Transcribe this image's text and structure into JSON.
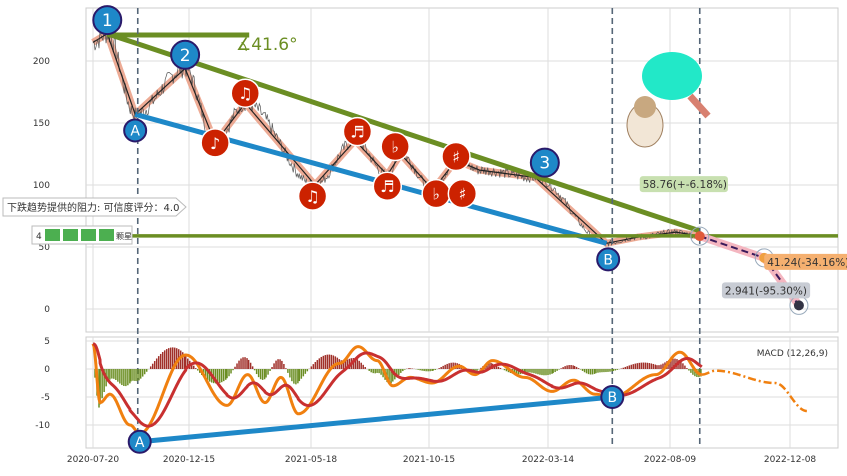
{
  "chart_data": [
    {
      "type": "line",
      "panel": "price",
      "yticks": [
        0,
        50,
        100,
        150,
        200
      ],
      "ylim": [
        -18,
        243
      ],
      "grid": true,
      "price_waypoints": [
        [
          "2020-07-20",
          215
        ],
        [
          "2020-08-11",
          222
        ],
        [
          "2020-09-23",
          157
        ],
        [
          "2020-12-09",
          194
        ],
        [
          "2021-01-17",
          134
        ],
        [
          "2021-02-24",
          166
        ],
        [
          "2021-05-23",
          100
        ],
        [
          "2021-07-13",
          136
        ],
        [
          "2021-08-23",
          108
        ],
        [
          "2021-09-09",
          125
        ],
        [
          "2021-10-20",
          96
        ],
        [
          "2021-11-18",
          120
        ],
        [
          "2021-12-18",
          112
        ],
        [
          "2022-02-26",
          106
        ],
        [
          "2022-05-24",
          53
        ],
        [
          "2022-07-01",
          58
        ],
        [
          "2022-08-15",
          62
        ],
        [
          "2022-09-08",
          58.76
        ]
      ],
      "forecast": [
        [
          "2022-09-08",
          58.76,
          "58.76(+-6.18%)"
        ],
        [
          "2022-11-12",
          41.24,
          "41.24(-34.16%)"
        ],
        [
          "2022-12-17",
          2.941,
          "2.941(-95.30%)"
        ]
      ],
      "resistance_line": {
        "from": [
          "2020-08-11",
          222
        ],
        "to": [
          "2022-09-08",
          63
        ]
      },
      "support_line": {
        "from": [
          "2020-09-23",
          157
        ],
        "to": [
          "2022-05-24",
          53
        ]
      },
      "horizontal_level": 59,
      "top_segment": {
        "from": "2020-08-11",
        "to": "2021-03-01",
        "value": 221
      },
      "angle_label": "∡41.6°",
      "resistance_label": "下跌趋势提供的阻力: 可信度评分：4.0",
      "rating": {
        "score": "4",
        "icon_count": 4,
        "suffix": "颗星"
      },
      "wave_labels": [
        {
          "t": "1",
          "d": "2020-08-11",
          "v": 233
        },
        {
          "t": "2",
          "d": "2020-12-09",
          "v": 205
        },
        {
          "t": "3",
          "d": "2022-03-10",
          "v": 118
        },
        {
          "t": "A",
          "d": "2020-09-23",
          "v": 144
        },
        {
          "t": "B",
          "d": "2022-05-26",
          "v": 40
        }
      ],
      "note_markers": [
        {
          "t": "♪",
          "d": "2021-01-17",
          "v": 134
        },
        {
          "t": "♫",
          "d": "2021-02-24",
          "v": 174
        },
        {
          "t": "♫",
          "d": "2021-05-20",
          "v": 91
        },
        {
          "t": "♬",
          "d": "2021-07-16",
          "v": 143
        },
        {
          "t": "♭",
          "d": "2021-09-02",
          "v": 131
        },
        {
          "t": "♬",
          "d": "2021-08-23",
          "v": 99
        },
        {
          "t": "♭",
          "d": "2021-10-24",
          "v": 93
        },
        {
          "t": "♯",
          "d": "2021-11-18",
          "v": 123
        },
        {
          "t": "♯",
          "d": "2021-11-26",
          "v": 93
        }
      ]
    },
    {
      "type": "line",
      "panel": "macd",
      "title": "MACD (12,26,9)",
      "yticks": [
        -10,
        -5,
        0,
        5
      ],
      "ylim": [
        -14,
        5.5
      ],
      "dif_waypoints": [
        [
          "2020-07-20",
          4.5
        ],
        [
          "2020-07-31",
          -6
        ],
        [
          "2020-08-15",
          -4.5
        ],
        [
          "2020-09-15",
          -10
        ],
        [
          "2020-09-30",
          -11.5
        ],
        [
          "2020-12-10",
          2.5
        ],
        [
          "2021-02-01",
          -6.5
        ],
        [
          "2021-02-27",
          -1
        ],
        [
          "2021-03-21",
          -6
        ],
        [
          "2021-04-10",
          -1.5
        ],
        [
          "2021-05-02",
          -8
        ],
        [
          "2021-06-23",
          1
        ],
        [
          "2021-07-17",
          4
        ],
        [
          "2021-08-10",
          1.5
        ],
        [
          "2021-08-30",
          -3
        ],
        [
          "2021-09-21",
          -1.5
        ],
        [
          "2021-10-19",
          -2.5
        ],
        [
          "2021-11-22",
          0.5
        ],
        [
          "2021-12-12",
          -1
        ],
        [
          "2022-01-03",
          1.5
        ],
        [
          "2022-02-13",
          -1.5
        ],
        [
          "2022-03-19",
          -4
        ],
        [
          "2022-04-14",
          -2
        ],
        [
          "2022-05-10",
          -4.5
        ],
        [
          "2022-05-31",
          -5
        ],
        [
          "2022-07-23",
          -1
        ],
        [
          "2022-08-19",
          3
        ],
        [
          "2022-09-10",
          -1
        ]
      ],
      "forecast": [
        [
          "2022-09-10",
          -1
        ],
        [
          "2022-09-24",
          -0.3
        ],
        [
          "2022-11-23",
          -2.5
        ],
        [
          "2022-12-25",
          -7.5
        ]
      ],
      "divergence_line": {
        "from": [
          "2020-09-30",
          -13
        ],
        "to": [
          "2022-05-31",
          -5
        ]
      },
      "labels": [
        {
          "t": "A",
          "d": "2020-09-30",
          "v": -13
        },
        {
          "t": "B",
          "d": "2022-05-31",
          "v": -5
        }
      ]
    }
  ],
  "xticks": [
    "2020-07-20",
    "2020-12-15",
    "2021-05-18",
    "2021-10-15",
    "2022-03-14",
    "2022-08-09",
    "2022-12-08"
  ],
  "vlines": [
    "2020-09-27",
    "2022-05-31",
    "2022-09-08"
  ],
  "colors": {
    "resistance": "#6b8e23",
    "support": "#1e88c8",
    "price": "#555",
    "wave": "#e8967a",
    "note": "#cc2200",
    "macd_dif": "#f08010",
    "macd_sig": "#c83030",
    "hist_pos": "#a0302a",
    "hist_neg": "#6b8e23"
  }
}
